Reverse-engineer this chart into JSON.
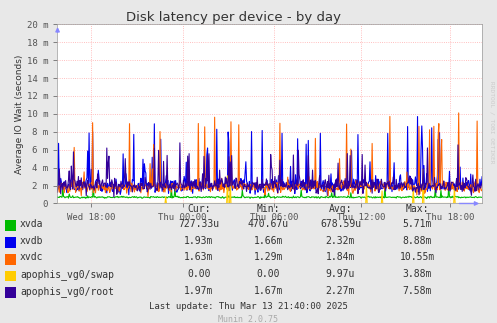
{
  "title": "Disk latency per device - by day",
  "ylabel": "Average IO Wait (seconds)",
  "background_color": "#e8e8e8",
  "plot_bg_color": "#ffffff",
  "grid_color": "#ffaaaa",
  "ylim": [
    0,
    0.02
  ],
  "ytick_labels": [
    "0",
    "2 m",
    "4 m",
    "6 m",
    "8 m",
    "10 m",
    "12 m",
    "14 m",
    "16 m",
    "18 m",
    "20 m"
  ],
  "ytick_values": [
    0.0,
    0.002,
    0.004,
    0.006,
    0.008,
    0.01,
    0.012,
    0.014,
    0.016,
    0.018,
    0.02
  ],
  "xtick_labels": [
    "Wed 18:00",
    "Thu 00:00",
    "Thu 06:00",
    "Thu 12:00",
    "Thu 18:00"
  ],
  "xtick_pos": [
    0.08,
    0.295,
    0.51,
    0.715,
    0.925
  ],
  "legend_entries": [
    "xvda",
    "xvdb",
    "xvdc",
    "apophis_vg0/swap",
    "apophis_vg0/root"
  ],
  "legend_colors": [
    "#00bb00",
    "#0000ee",
    "#ff6600",
    "#ffcc00",
    "#330099"
  ],
  "legend_cur": [
    "727.33u",
    "1.93m",
    "1.63m",
    "0.00",
    "1.97m"
  ],
  "legend_min": [
    "470.67u",
    "1.66m",
    "1.29m",
    "0.00",
    "1.67m"
  ],
  "legend_avg": [
    "678.59u",
    "2.32m",
    "1.84m",
    "9.97u",
    "2.27m"
  ],
  "legend_max": [
    "5.71m",
    "8.88m",
    "10.55m",
    "3.88m",
    "7.58m"
  ],
  "last_update": "Last update: Thu Mar 13 21:40:00 2025",
  "munin_version": "Munin 2.0.75",
  "watermark": "RRDTOOL / TOBI OETIKER",
  "n_points": 600,
  "figsize": [
    4.97,
    3.23
  ],
  "dpi": 100
}
